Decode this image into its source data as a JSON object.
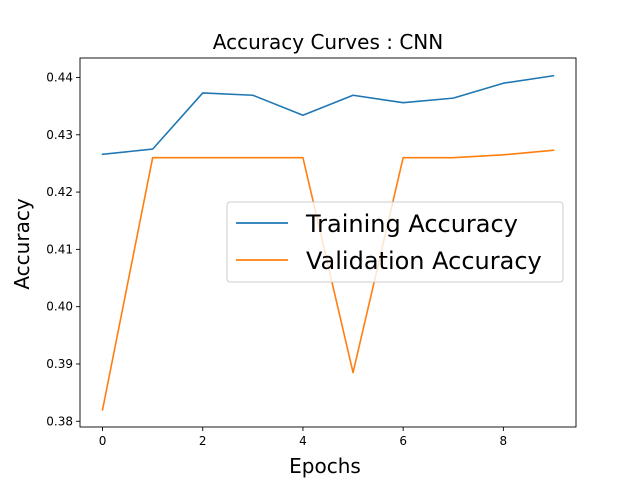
{
  "chart_data": {
    "type": "line",
    "title": "Accuracy Curves : CNN",
    "xlabel": "Epochs",
    "ylabel": "Accuracy",
    "x": [
      0,
      1,
      2,
      3,
      4,
      5,
      6,
      7,
      8,
      9
    ],
    "xlim": [
      -0.45,
      9.45
    ],
    "ylim": [
      0.379,
      0.4434
    ],
    "xticks": [
      0,
      2,
      4,
      6,
      8
    ],
    "xtick_labels": [
      "0",
      "2",
      "4",
      "6",
      "8"
    ],
    "yticks": [
      0.38,
      0.39,
      0.4,
      0.41,
      0.42,
      0.43,
      0.44
    ],
    "ytick_labels": [
      "0.38",
      "0.39",
      "0.40",
      "0.41",
      "0.42",
      "0.43",
      "0.44"
    ],
    "grid": false,
    "legend_position": "center-right",
    "series": [
      {
        "name": "Training Accuracy",
        "color": "#1f77b4",
        "values": [
          0.4266,
          0.4275,
          0.4373,
          0.4369,
          0.4334,
          0.4369,
          0.4356,
          0.4364,
          0.439,
          0.4403
        ]
      },
      {
        "name": "Validation Accuracy",
        "color": "#ff7f0e",
        "values": [
          0.382,
          0.426,
          0.426,
          0.426,
          0.426,
          0.3885,
          0.426,
          0.426,
          0.4265,
          0.4273
        ]
      }
    ]
  }
}
